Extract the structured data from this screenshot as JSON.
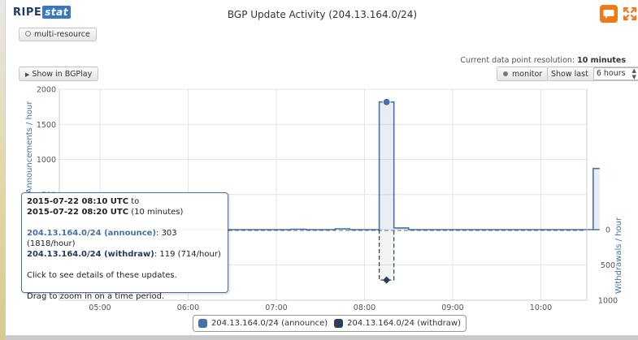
{
  "header": {
    "logo_ripe": "RIPE",
    "logo_stat": "stat",
    "title": "BGP Update Activity (204.13.164.0/24)"
  },
  "toolbar": {
    "multi_resource_label": "multi-resource",
    "show_in_bgplay_label": "Show in BGPlay",
    "monitor_label": "monitor",
    "show_last_label": "Show last",
    "show_last_value": "6 hours",
    "resolution_label": "Current data point resolution:",
    "resolution_value": "10 minutes"
  },
  "icons": {
    "chat": "speech-bubble-icon",
    "expand": "expand-arrows-icon",
    "play": "play-triangle-icon"
  },
  "colors": {
    "announce": "#4572a7",
    "withdraw": "#2b3f5c",
    "accent": "#f07a1a"
  },
  "chart_data": {
    "type": "area",
    "xlabel": "",
    "ylabel_top": "Announcements / hour",
    "ylabel_bottom": "Withdrawals / hour",
    "x_ticks": [
      "05:00",
      "06:00",
      "07:00",
      "08:00",
      "09:00",
      "10:00"
    ],
    "y_ticks_top": [
      "2000",
      "1500",
      "1000",
      "500",
      "0"
    ],
    "y_ticks_bottom": [
      "0",
      "500",
      "1000"
    ],
    "ylim_top": [
      0,
      2000
    ],
    "ylim_bottom": [
      0,
      1000
    ],
    "grid": true,
    "series": [
      {
        "name": "204.13.164.0/24 (announce)",
        "x": [
          "04:40",
          "04:50",
          "05:00",
          "05:10",
          "05:20",
          "05:30",
          "05:40",
          "05:50",
          "06:00",
          "06:10",
          "06:20",
          "06:30",
          "06:40",
          "06:50",
          "07:00",
          "07:10",
          "07:20",
          "07:30",
          "07:40",
          "07:50",
          "08:00",
          "08:10",
          "08:20",
          "08:30",
          "08:40",
          "08:50",
          "09:00",
          "09:10",
          "09:20",
          "09:30",
          "09:40",
          "09:50",
          "10:00",
          "10:10",
          "10:20",
          "10:30"
        ],
        "values": [
          0,
          0,
          0,
          0,
          0,
          0,
          0,
          0,
          0,
          0,
          0,
          0,
          0,
          0,
          0,
          6,
          0,
          0,
          12,
          0,
          0,
          1818,
          24,
          0,
          0,
          0,
          0,
          0,
          0,
          0,
          0,
          0,
          0,
          0,
          0,
          0
        ],
        "tail_value": 870
      },
      {
        "name": "204.13.164.0/24 (withdraw)",
        "x": [
          "08:10"
        ],
        "values": [
          714
        ]
      }
    ]
  },
  "tooltip": {
    "from": "2015-07-22 08:10 UTC",
    "to_word": "to",
    "to": "2015-07-22 08:20 UTC",
    "duration": "(10 minutes)",
    "announce_name": "204.13.164.0/24 (announce)",
    "announce_value": ": 303 (1818/hour)",
    "withdraw_name": "204.13.164.0/24 (withdraw)",
    "withdraw_value": ": 119 (714/hour)",
    "hint_click": "Click to see details of these updates.",
    "hint_drag": "Drag to zoom in on a time period."
  },
  "legend": {
    "announce": "204.13.164.0/24 (announce)",
    "withdraw": "204.13.164.0/24 (withdraw)"
  }
}
